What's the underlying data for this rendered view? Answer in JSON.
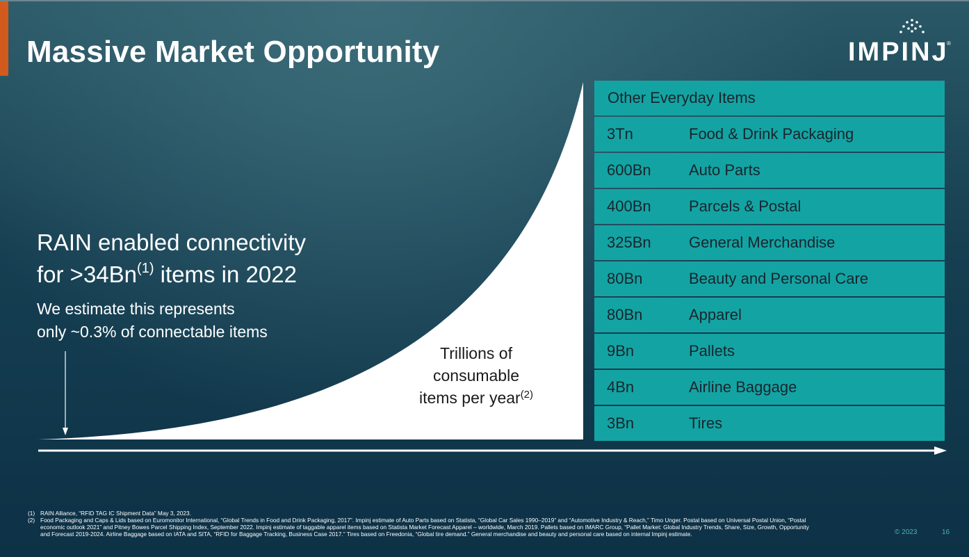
{
  "slide": {
    "title": "Massive Market Opportunity",
    "logo_text": "IMPINJ",
    "logo_reg": "®"
  },
  "headline": {
    "line1": "RAIN enabled connectivity",
    "line2_pre": "for >34Bn",
    "line2_sup": "(1)",
    "line2_post": " items in 2022"
  },
  "subtext": {
    "line1": "We estimate this represents",
    "line2": "only ~0.3% of connectable items"
  },
  "curve_label": {
    "line1": "Trillions of",
    "line2": "consumable",
    "line3": "items per year",
    "sup": "(2)"
  },
  "table": {
    "header": "Other Everyday Items",
    "rows": [
      {
        "count": "3Tn",
        "name": "Food & Drink Packaging"
      },
      {
        "count": "600Bn",
        "name": "Auto Parts"
      },
      {
        "count": "400Bn",
        "name": "Parcels & Postal"
      },
      {
        "count": "325Bn",
        "name": "General Merchandise"
      },
      {
        "count": "80Bn",
        "name": "Beauty and Personal Care"
      },
      {
        "count": "80Bn",
        "name": "Apparel"
      },
      {
        "count": "9Bn",
        "name": "Pallets"
      },
      {
        "count": "4Bn",
        "name": "Airline Baggage"
      },
      {
        "count": "3Bn",
        "name": "Tires"
      }
    ]
  },
  "footnotes": [
    {
      "num": "(1)",
      "text": "RAIN Alliance, “RFID TAG IC Shipment Data” May 3, 2023."
    },
    {
      "num": "(2)",
      "text": "Food Packaging and Caps & Lids based on Euromonitor International, “Global Trends in Food and Drink Packaging, 2017”. Impinj estimate of Auto Parts based on Statista, “Global Car Sales 1990–2019” and “Automotive Industry & Reach,” Timo Unger. Postal based on Universal Postal Union, “Postal economic outlook 2021” and Pitney Bowes Parcel Shipping Index, September 2022. Impinj estimate of taggable apparel items based on Statista Market Forecast Apparel – worldwide, March 2019. Pallets based on IMARC Group, “Pallet Market: Global Industry Trends, Share, Size, Growth, Opportunity and Forecast 2019-2024. Airline Baggage based on IATA and SITA, “RFID for Baggage Tracking, Business Case 2017.” Tires based on Freedonia, “Global tire demand.” General merchandise and beauty and personal care based on internal Impinj estimate."
    }
  ],
  "footer": {
    "copyright": "©  2023",
    "page": "16"
  },
  "colors": {
    "accent_orange": "#d25a1c",
    "teal_row": "#14a3a3",
    "footer_teal": "#49b3b3"
  }
}
